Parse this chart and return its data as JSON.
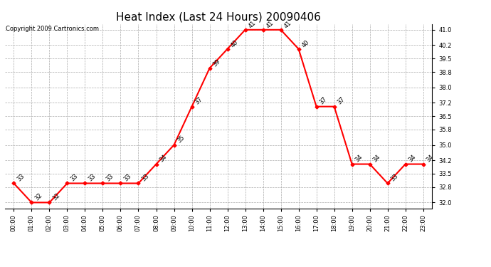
{
  "title": "Heat Index (Last 24 Hours) 20090406",
  "copyright": "Copyright 2009 Cartronics.com",
  "hours": [
    "00:00",
    "01:00",
    "02:00",
    "03:00",
    "04:00",
    "05:00",
    "06:00",
    "07:00",
    "08:00",
    "09:00",
    "10:00",
    "11:00",
    "12:00",
    "13:00",
    "14:00",
    "15:00",
    "16:00",
    "17:00",
    "18:00",
    "19:00",
    "20:00",
    "21:00",
    "22:00",
    "23:00"
  ],
  "values": [
    33,
    32,
    32,
    33,
    33,
    33,
    33,
    33,
    34,
    35,
    37,
    39,
    40,
    41,
    41,
    41,
    40,
    37,
    37,
    34,
    34,
    33,
    34,
    34
  ],
  "yticks": [
    32.0,
    32.8,
    33.5,
    34.2,
    35.0,
    35.8,
    36.5,
    37.2,
    38.0,
    38.8,
    39.5,
    40.2,
    41.0
  ],
  "ymin": 31.7,
  "ymax": 41.3,
  "line_color": "#FF0000",
  "marker_color": "#FF0000",
  "bg_color": "#FFFFFF",
  "grid_color": "#AAAAAA",
  "title_fontsize": 11,
  "tick_fontsize": 6,
  "annotation_fontsize": 6,
  "copyright_fontsize": 6
}
